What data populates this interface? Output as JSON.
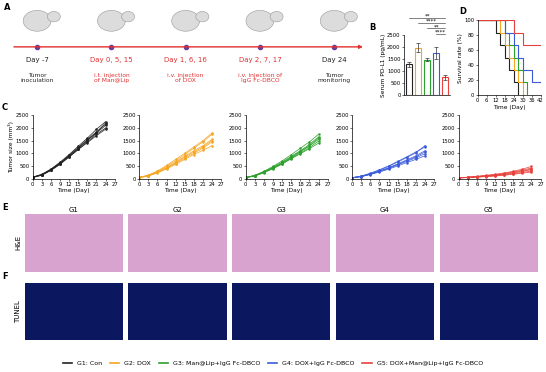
{
  "chart_data": [
    {
      "panel": "B",
      "type": "bar",
      "categories": [
        null,
        null,
        null,
        null,
        null
      ],
      "values": [
        1280,
        1980,
        1480,
        1750,
        730
      ],
      "errors": [
        120,
        200,
        60,
        250,
        120
      ],
      "colors": [
        "#222222",
        "#f5a623",
        "#2ca02c",
        "#3a5bd9",
        "#e8413b"
      ],
      "ylabel": "Serum PD-L1 (pg/mL)",
      "ylim": [
        0,
        2500
      ],
      "yticks": [
        0,
        500,
        1000,
        1500,
        2000,
        2500
      ],
      "tick_labels": "y",
      "annotations": [
        {
          "between": [
            0,
            4
          ],
          "label": "**"
        },
        {
          "between": [
            1,
            4
          ],
          "label": "****"
        },
        {
          "between": [
            2,
            4
          ],
          "label": "**"
        },
        {
          "between": [
            3,
            4
          ],
          "label": "****"
        }
      ]
    },
    {
      "panel": "C",
      "type": "line",
      "color": "#222222",
      "marker": "o",
      "xlabel": "Time (Day)",
      "ylabel": "Tumor size (mm³)",
      "x": [
        0,
        3,
        6,
        9,
        12,
        15,
        18,
        21,
        24
      ],
      "xlim": [
        0,
        27
      ],
      "xticks": [
        0,
        3,
        6,
        9,
        12,
        15,
        18,
        21,
        24,
        27
      ],
      "ylim": [
        0,
        2500
      ],
      "yticks": [
        0,
        500,
        1000,
        1500,
        2000,
        2500
      ],
      "series": [
        {
          "values": [
            50,
            150,
            350,
            600,
            900,
            1200,
            1550,
            1850,
            2150
          ]
        },
        {
          "values": [
            60,
            170,
            380,
            650,
            950,
            1280,
            1600,
            1950,
            2250
          ]
        },
        {
          "values": [
            40,
            130,
            320,
            560,
            850,
            1150,
            1450,
            1750,
            2000
          ]
        },
        {
          "values": [
            55,
            160,
            360,
            620,
            920,
            1230,
            1520,
            1800,
            2100
          ]
        },
        {
          "values": [
            45,
            140,
            330,
            580,
            880,
            1180,
            1500,
            1820,
            2200
          ]
        },
        {
          "values": [
            50,
            150,
            340,
            590,
            870,
            1150,
            1420,
            1700,
            1950
          ]
        }
      ]
    },
    {
      "type": "line",
      "color": "#f5a623",
      "marker": "o",
      "xlabel": "Time (Day)",
      "x": [
        0,
        3,
        6,
        9,
        12,
        15,
        18,
        21,
        24
      ],
      "xlim": [
        0,
        27
      ],
      "xticks": [
        0,
        3,
        6,
        9,
        12,
        15,
        18,
        21,
        24,
        27
      ],
      "ylim": [
        0,
        2500
      ],
      "yticks": [
        0,
        500,
        1000,
        1500,
        2000,
        2500
      ],
      "series": [
        {
          "values": [
            40,
            120,
            280,
            480,
            700,
            950,
            1200,
            1450,
            1750
          ]
        },
        {
          "values": [
            50,
            140,
            300,
            520,
            760,
            1000,
            1250,
            1500,
            1800
          ]
        },
        {
          "values": [
            40,
            110,
            250,
            420,
            620,
            850,
            1050,
            1250,
            1500
          ]
        },
        {
          "values": [
            45,
            120,
            260,
            440,
            650,
            880,
            1100,
            1300,
            1550
          ]
        },
        {
          "values": [
            35,
            100,
            220,
            380,
            560,
            760,
            950,
            1120,
            1300
          ]
        },
        {
          "values": [
            40,
            110,
            240,
            400,
            590,
            800,
            1000,
            1200,
            1450
          ]
        }
      ]
    },
    {
      "type": "line",
      "color": "#2ca02c",
      "marker": "o",
      "xlabel": "Time (Day)",
      "x": [
        0,
        3,
        6,
        9,
        12,
        15,
        18,
        21,
        24
      ],
      "xlim": [
        0,
        27
      ],
      "xticks": [
        0,
        3,
        6,
        9,
        12,
        15,
        18,
        21,
        24,
        27
      ],
      "ylim": [
        0,
        2500
      ],
      "yticks": [
        0,
        500,
        1000,
        1500,
        2000,
        2500
      ],
      "series": [
        {
          "values": [
            40,
            120,
            260,
            450,
            650,
            880,
            1100,
            1350,
            1650
          ]
        },
        {
          "values": [
            45,
            130,
            290,
            480,
            700,
            940,
            1200,
            1450,
            1750
          ]
        },
        {
          "values": [
            35,
            100,
            230,
            390,
            570,
            780,
            980,
            1180,
            1400
          ]
        },
        {
          "values": [
            40,
            110,
            250,
            420,
            610,
            820,
            1050,
            1280,
            1550
          ]
        },
        {
          "values": [
            38,
            105,
            240,
            400,
            590,
            800,
            1010,
            1220,
            1480
          ]
        },
        {
          "values": [
            42,
            115,
            255,
            430,
            630,
            850,
            1080,
            1300,
            1600
          ]
        }
      ]
    },
    {
      "type": "line",
      "color": "#3a5bd9",
      "marker": "o",
      "xlabel": "Time (Day)",
      "x": [
        0,
        3,
        6,
        9,
        12,
        15,
        18,
        21,
        24
      ],
      "xlim": [
        0,
        27
      ],
      "xticks": [
        0,
        3,
        6,
        9,
        12,
        15,
        18,
        21,
        24,
        27
      ],
      "ylim": [
        0,
        2500
      ],
      "yticks": [
        0,
        500,
        1000,
        1500,
        2000,
        2500
      ],
      "series": [
        {
          "values": [
            35,
            90,
            200,
            330,
            480,
            650,
            830,
            1020,
            1300
          ]
        },
        {
          "values": [
            40,
            100,
            210,
            350,
            500,
            680,
            860,
            1050,
            1250
          ]
        },
        {
          "values": [
            30,
            80,
            170,
            280,
            400,
            540,
            680,
            820,
            980
          ]
        },
        {
          "values": [
            35,
            85,
            180,
            300,
            430,
            580,
            740,
            900,
            1100
          ]
        },
        {
          "values": [
            30,
            75,
            160,
            260,
            370,
            500,
            630,
            760,
            900
          ]
        },
        {
          "values": [
            32,
            80,
            170,
            290,
            410,
            560,
            710,
            860,
            1050
          ]
        }
      ]
    },
    {
      "type": "line",
      "color": "#e8413b",
      "marker": "o",
      "xlabel": "Time (Day)",
      "x": [
        0,
        3,
        6,
        9,
        12,
        15,
        18,
        21,
        24
      ],
      "xlim": [
        0,
        27
      ],
      "xticks": [
        0,
        3,
        6,
        9,
        12,
        15,
        18,
        21,
        24,
        27
      ],
      "ylim": [
        0,
        2500
      ],
      "yticks": [
        0,
        500,
        1000,
        1500,
        2000,
        2500
      ],
      "series": [
        {
          "values": [
            30,
            50,
            80,
            110,
            150,
            200,
            260,
            330,
            420
          ]
        },
        {
          "values": [
            30,
            45,
            70,
            100,
            130,
            170,
            220,
            280,
            350
          ]
        },
        {
          "values": [
            25,
            40,
            60,
            85,
            110,
            150,
            190,
            240,
            300
          ]
        },
        {
          "values": [
            30,
            50,
            75,
            105,
            140,
            185,
            240,
            300,
            380
          ]
        },
        {
          "values": [
            25,
            35,
            55,
            75,
            100,
            130,
            170,
            210,
            260
          ]
        },
        {
          "values": [
            30,
            55,
            90,
            130,
            170,
            220,
            290,
            370,
            480
          ]
        }
      ]
    },
    {
      "panel": "D",
      "type": "step",
      "xlabel": "Time (Day)",
      "ylabel": "Survival rate (%)",
      "xlim": [
        0,
        42
      ],
      "xticks": [
        0,
        6,
        12,
        18,
        24,
        30,
        36,
        42
      ],
      "ylim": [
        0,
        100
      ],
      "yticks": [
        0,
        20,
        40,
        60,
        80,
        100
      ],
      "series": [
        {
          "color": "#222222",
          "x": [
            0,
            12,
            15,
            18,
            21,
            24,
            27
          ],
          "values": [
            100,
            83,
            67,
            50,
            33,
            17,
            0
          ]
        },
        {
          "color": "#f5a623",
          "x": [
            0,
            15,
            18,
            21,
            24,
            27,
            30
          ],
          "values": [
            100,
            83,
            67,
            50,
            33,
            17,
            0
          ]
        },
        {
          "color": "#2ca02c",
          "x": [
            0,
            18,
            21,
            24,
            27,
            30,
            33
          ],
          "values": [
            100,
            83,
            67,
            50,
            33,
            17,
            0
          ]
        },
        {
          "color": "#3a5bd9",
          "x": [
            0,
            18,
            24,
            27,
            30,
            36,
            42
          ],
          "values": [
            100,
            83,
            67,
            50,
            33,
            17,
            17
          ]
        },
        {
          "color": "#e8413b",
          "x": [
            0,
            24,
            30,
            42
          ],
          "values": [
            100,
            83,
            67,
            67
          ]
        }
      ]
    }
  ],
  "schematic": {
    "panel": "A",
    "steps": [
      {
        "day": "Day -7",
        "text": "Tumor\ninoculation",
        "color": "#222222"
      },
      {
        "day": "Day 0, 5, 15",
        "text": "i.t. injection\nof Man@Lip",
        "color": "#e03030"
      },
      {
        "day": "Day 1, 6, 16",
        "text": "i.v. injection\nof DOX",
        "color": "#e03030"
      },
      {
        "day": "Day 2, 7, 17",
        "text": "i.v. injection of\nIgG Fc-DBCO",
        "color": "#e03030"
      },
      {
        "day": "Day 24",
        "text": "Tumor\nmonitoring",
        "color": "#222222"
      }
    ]
  },
  "histology": {
    "columns": [
      "G1",
      "G2",
      "G3",
      "G4",
      "G5"
    ],
    "rows": [
      {
        "panel": "E",
        "label": "H&E",
        "color": "#d9a3cf"
      },
      {
        "panel": "F",
        "label": "TUNEL",
        "color": "#0b1860"
      }
    ]
  },
  "group_legend": [
    {
      "name": "G1: Con",
      "color": "#222222"
    },
    {
      "name": "G2: DOX",
      "color": "#f5a623"
    },
    {
      "name": "G3: Man@Lip+IgG Fc-DBCO",
      "color": "#2ca02c"
    },
    {
      "name": "G4: DOX+IgG Fc-DBCO",
      "color": "#3a5bd9"
    },
    {
      "name": "G5: DOX+Man@Lip+IgG Fc-DBCO",
      "color": "#e8413b"
    }
  ]
}
